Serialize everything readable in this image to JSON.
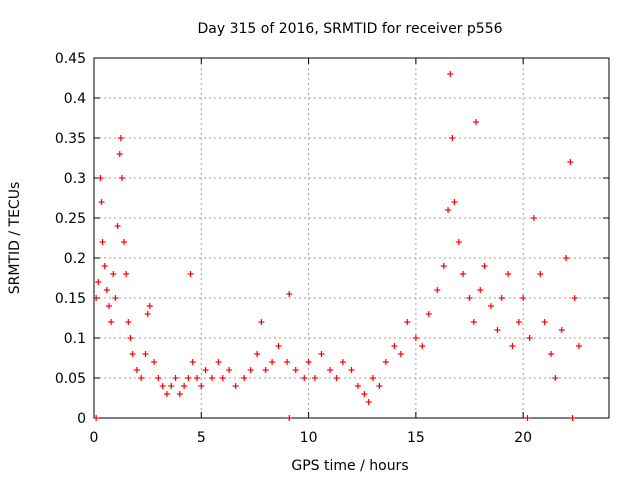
{
  "chart_data": {
    "type": "scatter",
    "title": "Day 315 of 2016, SRMTID for receiver p556",
    "xlabel": "GPS time / hours",
    "ylabel": "SRMTID / TECUs",
    "xlim": [
      0,
      24
    ],
    "ylim": [
      0,
      0.45
    ],
    "x_ticks": [
      0,
      5,
      10,
      15,
      20
    ],
    "x_tick_labels": [
      "0",
      "5",
      "10",
      "15",
      "20"
    ],
    "y_ticks": [
      0,
      0.05,
      0.1,
      0.15,
      0.2,
      0.25,
      0.3,
      0.35,
      0.4,
      0.45
    ],
    "y_tick_labels": [
      "0",
      "0.05",
      "0.1",
      "0.15",
      "0.2",
      "0.25",
      "0.3",
      "0.35",
      "0.4",
      "0.45"
    ],
    "grid": true,
    "marker": "plus",
    "color": "#ff0000",
    "series": [
      {
        "name": "SRMTID",
        "x": [
          0.1,
          0.2,
          0.3,
          0.35,
          0.4,
          0.5,
          0.6,
          0.7,
          0.8,
          0.9,
          1.0,
          1.1,
          1.2,
          1.25,
          1.3,
          1.4,
          1.5,
          1.6,
          1.7,
          1.8,
          2.0,
          2.2,
          2.4,
          2.5,
          2.6,
          2.8,
          3.0,
          3.2,
          3.4,
          3.6,
          3.8,
          4.0,
          4.2,
          4.4,
          4.5,
          4.6,
          4.8,
          5.0,
          5.2,
          5.5,
          5.8,
          6.0,
          6.3,
          6.6,
          7.0,
          7.3,
          7.6,
          7.8,
          8.0,
          8.3,
          8.6,
          9.0,
          9.1,
          9.4,
          9.8,
          10.0,
          10.3,
          10.6,
          11.0,
          11.3,
          11.6,
          12.0,
          12.3,
          12.6,
          12.8,
          13.0,
          13.3,
          13.6,
          14.0,
          14.3,
          14.6,
          15.0,
          15.3,
          15.6,
          16.0,
          16.3,
          16.5,
          16.6,
          16.7,
          16.8,
          17.0,
          17.2,
          17.5,
          17.7,
          17.8,
          18.0,
          18.2,
          18.5,
          18.8,
          19.0,
          19.3,
          19.5,
          19.8,
          20.0,
          20.3,
          20.5,
          20.8,
          21.0,
          21.3,
          21.5,
          21.8,
          22.0,
          22.2,
          22.4,
          22.6
        ],
        "y": [
          0.15,
          0.17,
          0.3,
          0.27,
          0.22,
          0.19,
          0.16,
          0.14,
          0.12,
          0.18,
          0.15,
          0.24,
          0.33,
          0.35,
          0.3,
          0.22,
          0.18,
          0.12,
          0.1,
          0.08,
          0.06,
          0.05,
          0.08,
          0.13,
          0.14,
          0.07,
          0.05,
          0.04,
          0.03,
          0.04,
          0.05,
          0.03,
          0.04,
          0.05,
          0.18,
          0.07,
          0.05,
          0.04,
          0.06,
          0.05,
          0.07,
          0.05,
          0.06,
          0.04,
          0.05,
          0.06,
          0.08,
          0.12,
          0.06,
          0.07,
          0.09,
          0.07,
          0.155,
          0.06,
          0.05,
          0.07,
          0.05,
          0.08,
          0.06,
          0.05,
          0.07,
          0.06,
          0.04,
          0.03,
          0.02,
          0.05,
          0.04,
          0.07,
          0.09,
          0.08,
          0.12,
          0.1,
          0.09,
          0.13,
          0.16,
          0.19,
          0.26,
          0.43,
          0.35,
          0.27,
          0.22,
          0.18,
          0.15,
          0.12,
          0.37,
          0.16,
          0.19,
          0.14,
          0.11,
          0.15,
          0.18,
          0.09,
          0.12,
          0.15,
          0.1,
          0.25,
          0.18,
          0.12,
          0.08,
          0.05,
          0.11,
          0.2,
          0.32,
          0.15,
          0.09
        ]
      }
    ],
    "zero_markers_x": [
      0.1,
      9.1,
      20.2,
      22.3
    ]
  }
}
